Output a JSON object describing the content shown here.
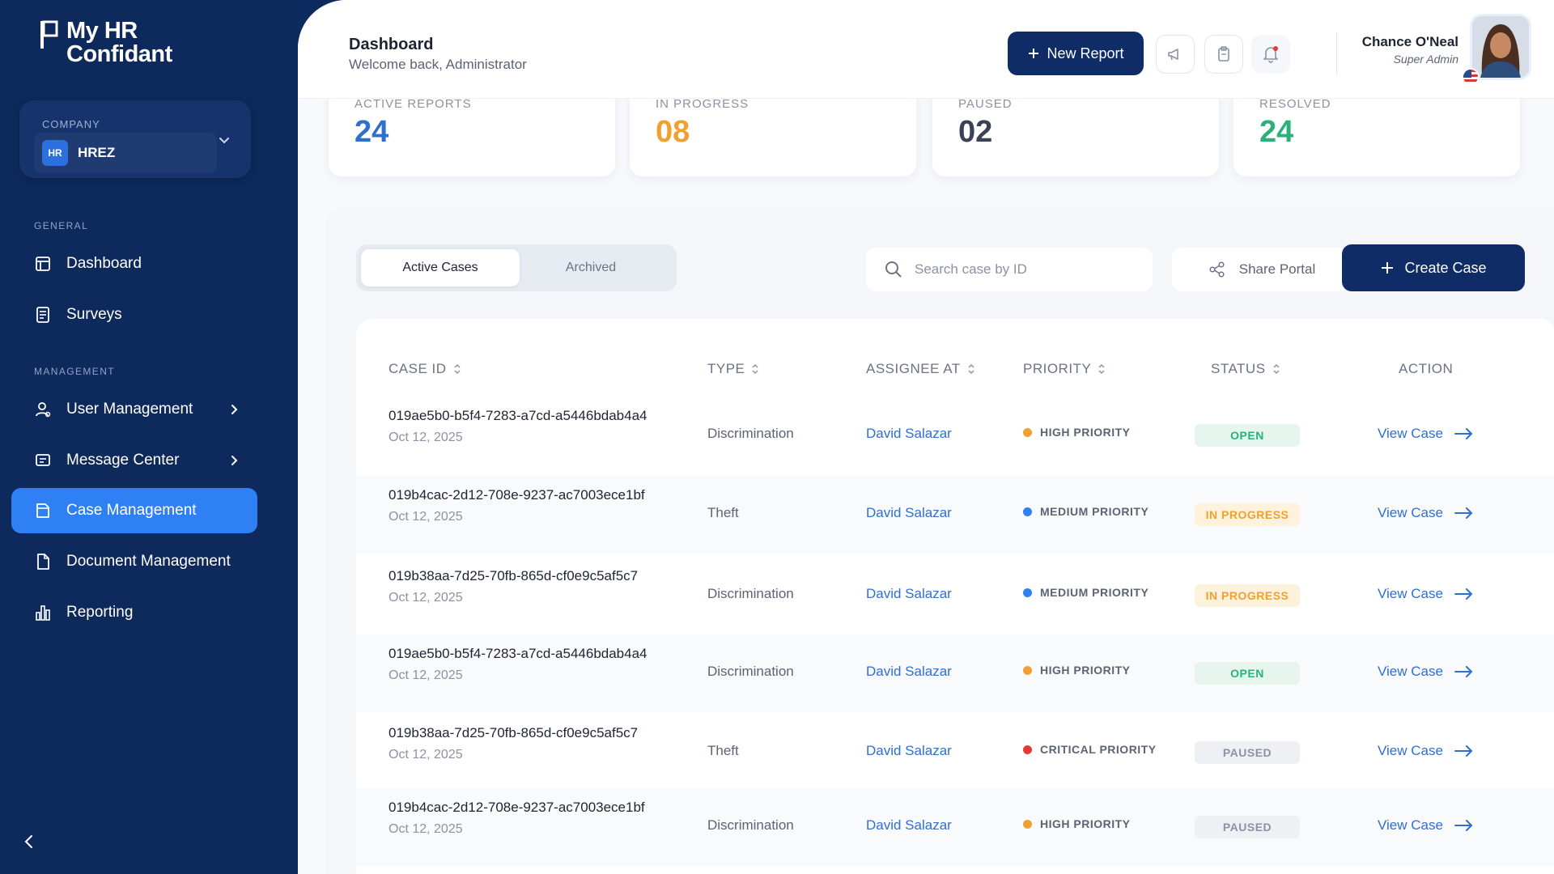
{
  "brand": {
    "line1": "My HR",
    "line2": "Confidant"
  },
  "company": {
    "label": "COMPANY",
    "badge": "HR",
    "name": "HREZ"
  },
  "sidebar": {
    "general_label": "GENERAL",
    "management_label": "MANAGEMENT",
    "items": [
      {
        "label": "Dashboard",
        "icon": "dashboard-icon"
      },
      {
        "label": "Surveys",
        "icon": "survey-icon"
      },
      {
        "label": "User Management",
        "icon": "users-icon"
      },
      {
        "label": "Message Center",
        "icon": "message-icon"
      },
      {
        "label": "Case Management",
        "icon": "folder-icon"
      },
      {
        "label": "Document Management",
        "icon": "document-icon"
      },
      {
        "label": "Reporting",
        "icon": "bar-chart-icon"
      }
    ],
    "active_item": "Case Management"
  },
  "header": {
    "title": "Dashboard",
    "subtitle": "Welcome back, Administrator",
    "new_report_label": "New Report",
    "user_name": "Chance O'Neal",
    "user_role": "Super Admin"
  },
  "stats": [
    {
      "label": "ACTIVE REPORTS",
      "value": "24",
      "color": "#2f6fce"
    },
    {
      "label": "IN PROGRESS",
      "value": "08",
      "color": "#f0a030"
    },
    {
      "label": "PAUSED",
      "value": "02",
      "color": "#3a4356"
    },
    {
      "label": "RESOLVED",
      "value": "24",
      "color": "#2bb07a"
    }
  ],
  "cases": {
    "tabs": [
      "Active Cases",
      "Archived"
    ],
    "search_placeholder": "Search case by ID",
    "share_label": "Share Portal",
    "create_label": "Create Case",
    "columns": [
      "CASE ID",
      "TYPE",
      "ASSIGNEE AT",
      "PRIORITY",
      "STATUS",
      "ACTION"
    ],
    "rows": [
      {
        "id": "019ae5b0-b5f4-7283-a7cd-a5446bdab4a4",
        "date": "Oct 12, 2025",
        "type": "Discrimination",
        "assignee": "David Salazar",
        "priority": "HIGH PRIORITY",
        "priority_color": "#f0a030",
        "status": "OPEN",
        "status_bg": "#e6f6ee",
        "status_fg": "#2bb07a",
        "action": "View Case"
      },
      {
        "id": "019b4cac-2d12-708e-9237-ac7003ece1bf",
        "date": "Oct 12, 2025",
        "type": "Theft",
        "assignee": "David Salazar",
        "priority": "MEDIUM PRIORITY",
        "priority_color": "#2f7ff5",
        "status": "IN PROGRESS",
        "status_bg": "#fff2dd",
        "status_fg": "#f0a030",
        "action": "View Case"
      },
      {
        "id": "019b38aa-7d25-70fb-865d-cf0e9c5af5c7",
        "date": "Oct 12, 2025",
        "type": "Discrimination",
        "assignee": "David Salazar",
        "priority": "MEDIUM PRIORITY",
        "priority_color": "#2f7ff5",
        "status": "IN PROGRESS",
        "status_bg": "#fff2dd",
        "status_fg": "#f0a030",
        "action": "View Case"
      },
      {
        "id": "019ae5b0-b5f4-7283-a7cd-a5446bdab4a4",
        "date": "Oct 12, 2025",
        "type": "Discrimination",
        "assignee": "David Salazar",
        "priority": "HIGH PRIORITY",
        "priority_color": "#f0a030",
        "status": "OPEN",
        "status_bg": "#e6f6ee",
        "status_fg": "#2bb07a",
        "action": "View Case"
      },
      {
        "id": "019b38aa-7d25-70fb-865d-cf0e9c5af5c7",
        "date": "Oct 12, 2025",
        "type": "Theft",
        "assignee": "David Salazar",
        "priority": "CRITICAL PRIORITY",
        "priority_color": "#e53935",
        "status": "PAUSED",
        "status_bg": "#eef0f3",
        "status_fg": "#8a92a3",
        "action": "View Case"
      },
      {
        "id": "019b4cac-2d12-708e-9237-ac7003ece1bf",
        "date": "Oct 12, 2025",
        "type": "Discrimination",
        "assignee": "David Salazar",
        "priority": "HIGH PRIORITY",
        "priority_color": "#f0a030",
        "status": "PAUSED",
        "status_bg": "#eef0f3",
        "status_fg": "#8a92a3",
        "action": "View Case"
      }
    ]
  }
}
